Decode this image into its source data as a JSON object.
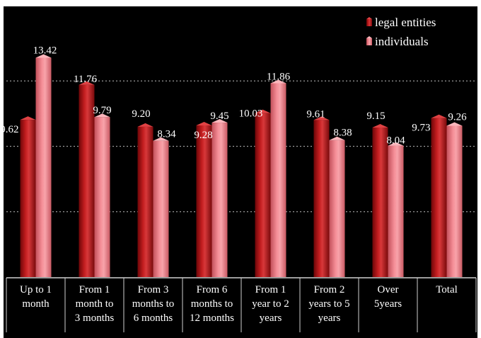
{
  "chart_data": {
    "type": "bar",
    "categories": [
      [
        "Up to 1",
        "month"
      ],
      [
        "From 1",
        "month to",
        "3 months"
      ],
      [
        "From 3",
        "months to",
        "6 months"
      ],
      [
        "From 6",
        "months to",
        "12 months"
      ],
      [
        "From 1",
        "year to 2",
        "years"
      ],
      [
        "From 2",
        "years to 5",
        "years"
      ],
      [
        "Over",
        "5years"
      ],
      [
        "Total"
      ]
    ],
    "series": [
      {
        "name": "legal entities",
        "values": [
          9.62,
          11.76,
          9.2,
          9.28,
          10.03,
          9.61,
          9.15,
          9.73
        ],
        "labels": [
          "9.62",
          "11.76",
          "9.20",
          "9.28",
          "10.03",
          "9.61",
          "9.15",
          "9.73"
        ],
        "color": "#b3181a"
      },
      {
        "name": "individuals",
        "values": [
          13.42,
          9.79,
          8.34,
          9.45,
          11.86,
          8.38,
          8.04,
          9.26
        ],
        "labels": [
          "13.42",
          "9.79",
          "8.34",
          "9.45",
          "11.86",
          "8.38",
          "8.04",
          "9.26"
        ],
        "color": "#f0808a"
      }
    ],
    "title": "",
    "xlabel": "",
    "ylabel": "",
    "ylim": [
      0,
      16
    ],
    "gridlines": [
      4,
      8,
      12
    ],
    "grid": true,
    "legend_position": "top-right",
    "background": "#000000"
  }
}
